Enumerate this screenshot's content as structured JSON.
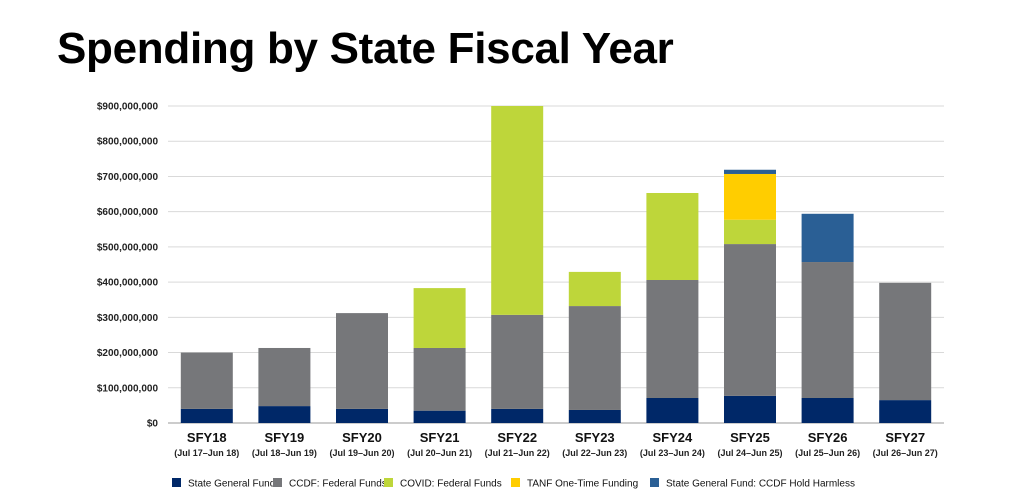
{
  "chart_data": {
    "type": "bar",
    "stacked": true,
    "title": "Spending by State Fiscal Year",
    "categories": [
      "SFY18",
      "SFY19",
      "SFY20",
      "SFY21",
      "SFY22",
      "SFY23",
      "SFY24",
      "SFY25",
      "SFY26",
      "SFY27"
    ],
    "category_sublabels": [
      "(Jul 17–Jun 18)",
      "(Jul 18–Jun 19)",
      "(Jul 19–Jun 20)",
      "(Jul 20–Jun 21)",
      "(Jul 21–Jun 22)",
      "(Jul 22–Jun 23)",
      "(Jul 23–Jun 24)",
      "(Jul 24–Jun 25)",
      "(Jul 25–Jun 26)",
      "(Jul 26–Jun 27)"
    ],
    "ylim": [
      0,
      900000000
    ],
    "yticks": [
      0,
      100000000,
      200000000,
      300000000,
      400000000,
      500000000,
      600000000,
      700000000,
      800000000,
      900000000
    ],
    "ytick_labels": [
      "$0",
      "$100,000,000",
      "$200,000,000",
      "$300,000,000",
      "$400,000,000",
      "$500,000,000",
      "$600,000,000",
      "$700,000,000",
      "$800,000,000",
      "$900,000,000"
    ],
    "grid": true,
    "legend_position": "bottom",
    "series": [
      {
        "name": "State General Fund",
        "color": "#002868",
        "values": [
          40000000,
          48000000,
          40000000,
          35000000,
          40000000,
          37000000,
          71000000,
          77000000,
          71000000,
          65000000
        ]
      },
      {
        "name": "CCDF: Federal Funds",
        "color": "#76777a",
        "values": [
          160000000,
          165000000,
          272000000,
          178000000,
          267000000,
          295000000,
          335000000,
          431000000,
          386000000,
          333000000
        ]
      },
      {
        "name": "COVID: Federal Funds",
        "color": "#bed63a",
        "values": [
          0,
          0,
          0,
          170000000,
          593000000,
          97000000,
          247000000,
          69000000,
          0,
          0
        ]
      },
      {
        "name": "TANF One-Time Funding",
        "color": "#ffcd00",
        "values": [
          0,
          0,
          0,
          0,
          0,
          0,
          0,
          130000000,
          0,
          0
        ]
      },
      {
        "name": "State General Fund: CCDF Hold Harmless",
        "color": "#2a5f95",
        "values": [
          0,
          0,
          0,
          0,
          0,
          0,
          0,
          12000000,
          137000000,
          0
        ]
      }
    ]
  }
}
